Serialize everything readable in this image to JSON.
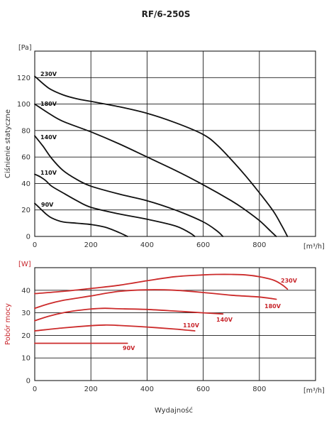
{
  "title": "RF/6-250S",
  "colors": {
    "pressure_curve": "#111111",
    "power_curve": "#cc2b2b",
    "grid": "#1a1a1a",
    "power_axis_text": "#c8262c"
  },
  "chart_data": [
    {
      "type": "line",
      "title": "RF/6-250S",
      "ylabel": "Ciśnienie statyczne",
      "yunit": "[Pa]",
      "xunit": "[m³/h]",
      "xlim": [
        0,
        1000
      ],
      "ylim": [
        0,
        140
      ],
      "xticks": [
        "0",
        "200",
        "400",
        "600",
        "800"
      ],
      "yticks": [
        "0",
        "20",
        "40",
        "60",
        "80",
        "100",
        "120"
      ],
      "grid": true,
      "series": [
        {
          "name": "230V",
          "x": [
            0,
            50,
            100,
            150,
            200,
            300,
            400,
            500,
            600,
            650,
            700,
            750,
            800,
            850,
            880,
            900
          ],
          "y": [
            121,
            112,
            107,
            104,
            102,
            98,
            93,
            86,
            77,
            69,
            58,
            46,
            33,
            19,
            8,
            0
          ]
        },
        {
          "name": "180V",
          "x": [
            0,
            50,
            100,
            200,
            300,
            400,
            500,
            600,
            700,
            750,
            800,
            840,
            860
          ],
          "y": [
            100,
            93,
            87,
            79,
            70,
            60,
            50,
            39,
            27,
            20,
            12,
            4,
            0
          ]
        },
        {
          "name": "140V",
          "x": [
            0,
            30,
            60,
            100,
            150,
            200,
            300,
            400,
            500,
            600,
            650,
            670
          ],
          "y": [
            76,
            68,
            59,
            50,
            43,
            38,
            32,
            27,
            20,
            11,
            4,
            0
          ]
        },
        {
          "name": "110V",
          "x": [
            0,
            20,
            40,
            60,
            100,
            150,
            200,
            300,
            400,
            500,
            550,
            570
          ],
          "y": [
            47,
            45,
            42,
            38,
            33,
            27,
            22,
            17,
            13,
            8,
            3,
            0
          ]
        },
        {
          "name": "90V",
          "x": [
            0,
            20,
            40,
            60,
            100,
            150,
            200,
            250,
            300,
            320,
            330
          ],
          "y": [
            25,
            21,
            17,
            14,
            11,
            10,
            9,
            7,
            3,
            1,
            0
          ]
        }
      ]
    },
    {
      "type": "line",
      "ylabel": "Pobór mocy",
      "yunit": "[W]",
      "xlabel": "Wydajność",
      "xunit": "[m³/h]",
      "xlim": [
        0,
        1000
      ],
      "ylim": [
        0,
        50
      ],
      "xticks": [
        "0",
        "200",
        "400",
        "600",
        "800"
      ],
      "yticks": [
        "0",
        "10",
        "20",
        "30",
        "40"
      ],
      "grid": true,
      "series": [
        {
          "name": "230V",
          "x": [
            0,
            100,
            200,
            300,
            400,
            500,
            600,
            650,
            700,
            750,
            800,
            850,
            880,
            900
          ],
          "y": [
            38.5,
            39.5,
            40.8,
            42.2,
            44.2,
            46,
            46.8,
            47,
            47,
            46.8,
            46,
            44.5,
            42.5,
            40.5
          ]
        },
        {
          "name": "180V",
          "x": [
            0,
            50,
            100,
            200,
            300,
            400,
            500,
            600,
            700,
            800,
            860
          ],
          "y": [
            32,
            34,
            35.5,
            37.5,
            39.5,
            40.2,
            40,
            39,
            37.8,
            37,
            36
          ]
        },
        {
          "name": "140V",
          "x": [
            0,
            50,
            100,
            150,
            200,
            250,
            300,
            400,
            500,
            600,
            670
          ],
          "y": [
            26.5,
            28.5,
            30,
            31,
            31.7,
            32,
            31.8,
            31.5,
            30.8,
            30,
            29.5
          ]
        },
        {
          "name": "110V",
          "x": [
            0,
            100,
            200,
            250,
            300,
            400,
            500,
            570
          ],
          "y": [
            22,
            23.3,
            24.3,
            24.6,
            24.4,
            23.7,
            22.8,
            22
          ]
        },
        {
          "name": "90V",
          "x": [
            0,
            330
          ],
          "y": [
            16.5,
            16.5
          ]
        }
      ]
    }
  ]
}
